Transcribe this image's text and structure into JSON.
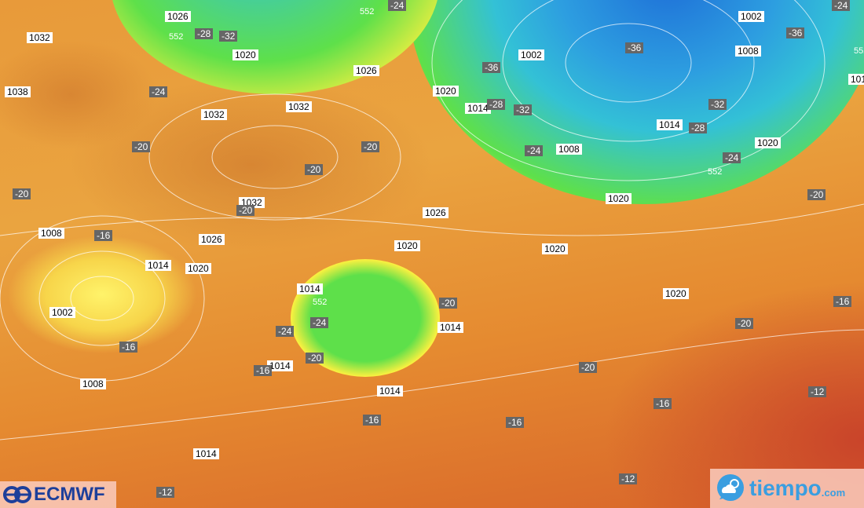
{
  "map": {
    "colors": {
      "cold_core": "#1e6fd8",
      "cyan": "#33c1d6",
      "green": "#5ee04a",
      "yellow": "#f8f040",
      "warm": "#e89a3a",
      "hot": "#c9442a"
    },
    "pressure_labels": [
      "1026",
      "1032",
      "1038",
      "1020",
      "1026",
      "1032",
      "1032",
      "1020",
      "1014",
      "1002",
      "1002",
      "1008",
      "1008",
      "1014",
      "1020",
      "1020",
      "1032",
      "1026",
      "1026",
      "1020",
      "1020",
      "1008",
      "1014",
      "1020",
      "1014",
      "1002",
      "1014",
      "1020",
      "1014",
      "1008",
      "1014",
      "1014",
      "101"
    ],
    "temperature_labels": [
      "-28",
      "-32",
      "-24",
      "-24",
      "-20",
      "-20",
      "-20",
      "-20",
      "-20",
      "-16",
      "-24",
      "-24",
      "-20",
      "-16",
      "-16",
      "-20",
      "-36",
      "-28",
      "-32",
      "-24",
      "-36",
      "-36",
      "-24",
      "-32",
      "-28",
      "-24",
      "-20",
      "-16",
      "-20",
      "-20",
      "-16",
      "-16",
      "-16",
      "-12",
      "-12",
      "-12"
    ],
    "contour_labels": [
      "552",
      "552",
      "552",
      "552",
      "552"
    ]
  },
  "logos": {
    "left": "ECMWF",
    "right_main": "tiempo",
    "right_suffix": ".com"
  }
}
